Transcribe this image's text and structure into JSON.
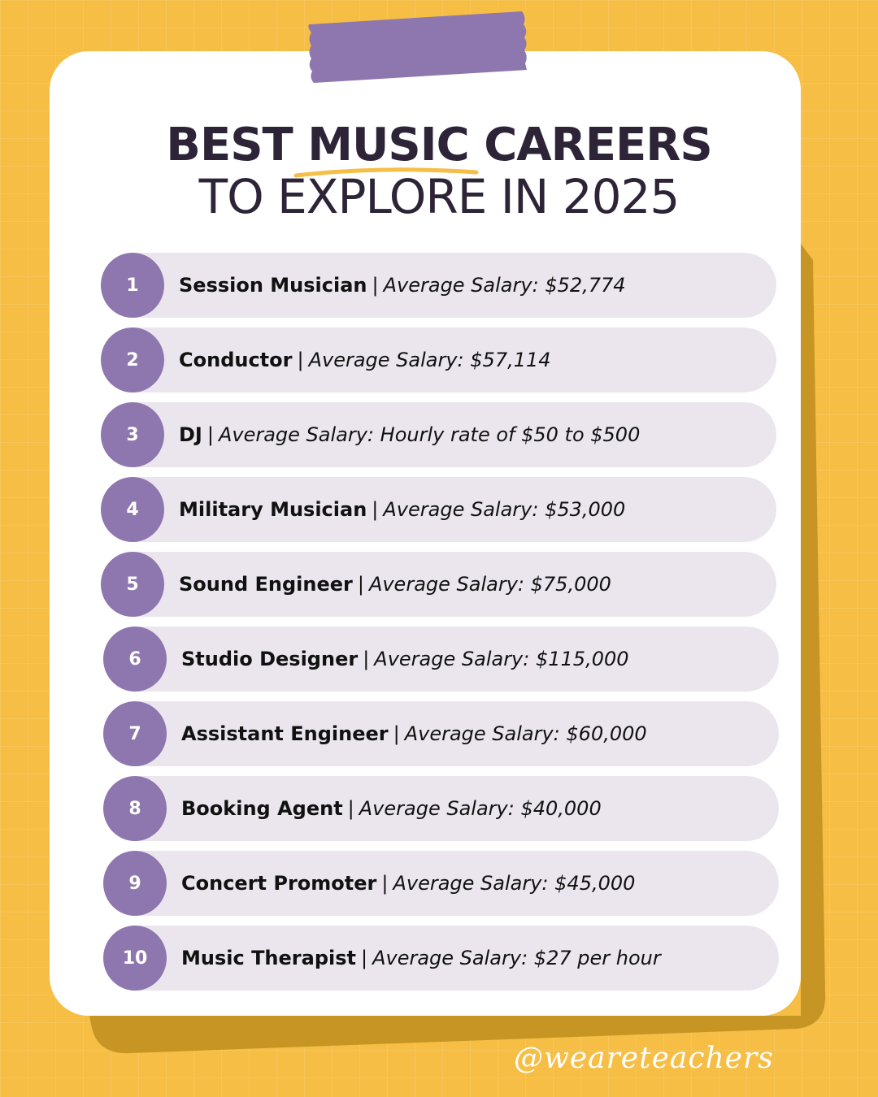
{
  "colors": {
    "background": "#F6BE45",
    "accent": "#8E76AF",
    "pill": "#EBE6EE",
    "text": "#2E2438",
    "shadow": "#C69524"
  },
  "title": {
    "line1_pre": "BEST ",
    "line1_highlight": "MUSIC",
    "line1_post": " CAREERS",
    "line2": "TO EXPLORE IN 2025"
  },
  "salary_prefix": "Average Salary:",
  "careers": [
    {
      "rank": "1",
      "job": "Session Musician",
      "salary": "$52,774"
    },
    {
      "rank": "2",
      "job": "Conductor",
      "salary": "$57,114"
    },
    {
      "rank": "3",
      "job": "DJ",
      "salary": "Hourly rate of $50 to $500"
    },
    {
      "rank": "4",
      "job": "Military Musician",
      "salary": "$53,000"
    },
    {
      "rank": "5",
      "job": "Sound Engineer",
      "salary": "$75,000"
    },
    {
      "rank": "6",
      "job": "Studio Designer",
      "salary": "$115,000"
    },
    {
      "rank": "7",
      "job": "Assistant Engineer",
      "salary": "$60,000"
    },
    {
      "rank": "8",
      "job": "Booking Agent",
      "salary": "$40,000"
    },
    {
      "rank": "9",
      "job": "Concert Promoter",
      "salary": "$45,000"
    },
    {
      "rank": "10",
      "job": "Music Therapist",
      "salary": "$27 per hour"
    }
  ],
  "handle": "@weareteachers"
}
